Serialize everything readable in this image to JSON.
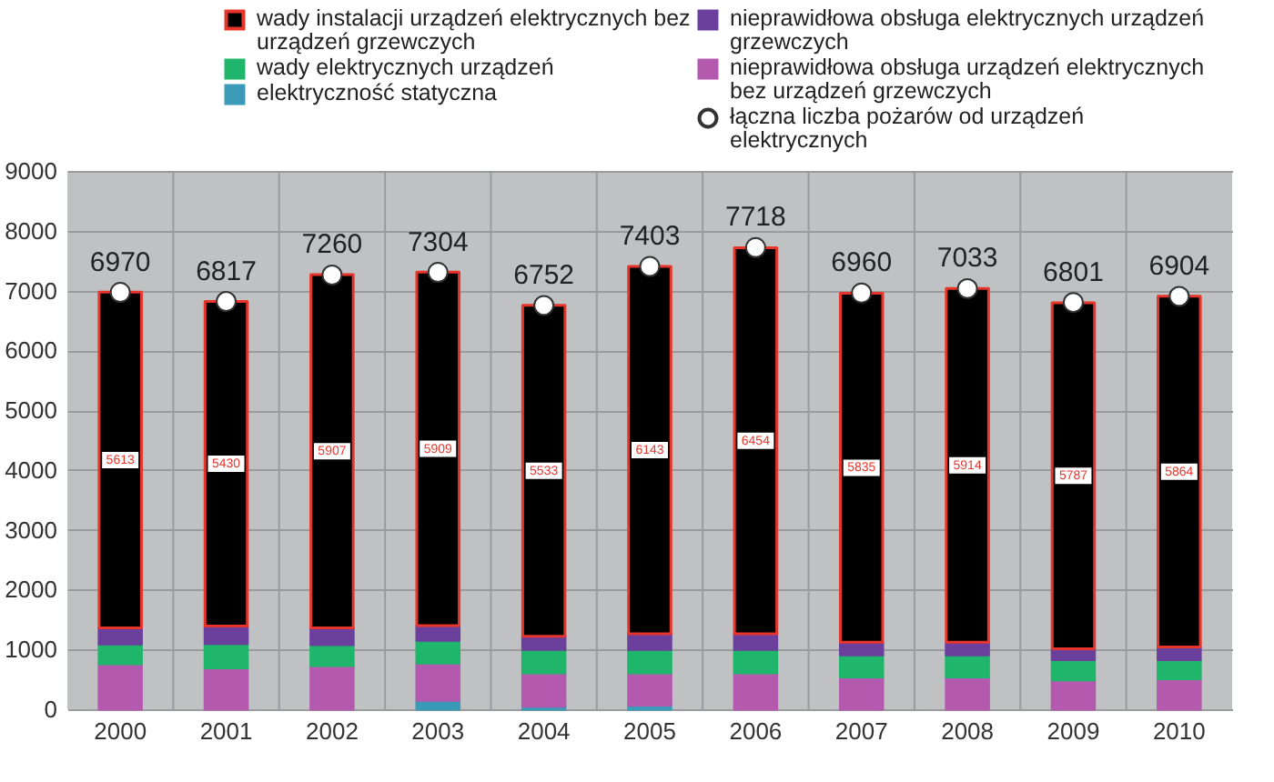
{
  "chart_data": {
    "type": "bar",
    "stacked": true,
    "legend": "top",
    "grid": true,
    "marker": "circle",
    "ylim": [
      0,
      9000
    ],
    "yticks": [
      0,
      1000,
      2000,
      3000,
      4000,
      5000,
      6000,
      7000,
      8000,
      9000
    ],
    "categories": [
      "2000",
      "2001",
      "2002",
      "2003",
      "2004",
      "2005",
      "2006",
      "2007",
      "2008",
      "2009",
      "2010"
    ],
    "series": [
      {
        "name": "elektryczność statyczna",
        "color": "#3a9ab8",
        "values": [
          null,
          null,
          null,
          150,
          50,
          70,
          null,
          null,
          null,
          null,
          null
        ]
      },
      {
        "name": "nieprawidłowa obsługa urządzeń elektrycznych bez urządzeń grzewczych",
        "color": "#b35aae",
        "values": [
          760,
          690,
          730,
          620,
          560,
          540,
          610,
          540,
          540,
          490,
          510
        ]
      },
      {
        "name": "wady elektrycznych urządzeń",
        "color": "#1fb56b",
        "values": [
          330,
          410,
          350,
          380,
          390,
          390,
          390,
          370,
          370,
          340,
          320
        ]
      },
      {
        "name": "nieprawidłowa obsługa elektrycznych urządzeń grzewczych",
        "color": "#6b3f9c",
        "values": [
          270,
          290,
          280,
          250,
          220,
          260,
          260,
          210,
          210,
          180,
          210
        ]
      },
      {
        "name": "wady instalacji urządzeń elektrycznych bez urządzeń grzewczych",
        "color": "#000000",
        "values": [
          5613,
          5430,
          5907,
          5909,
          5533,
          6143,
          6454,
          5835,
          5914,
          5787,
          5864
        ],
        "value_labels": [
          "5613",
          "5430",
          "5907",
          "5909",
          "5533",
          "6143",
          "6454",
          "5835",
          "5914",
          "5787",
          "5864"
        ]
      },
      {
        "name": "łączna liczba pożarów od urządzeń elektrycznych",
        "type": "scatter",
        "color": "#ffffff",
        "values": [
          6970,
          6817,
          7260,
          7304,
          6752,
          7403,
          7718,
          6960,
          7033,
          6801,
          6904
        ],
        "value_labels": [
          "6970",
          "6817",
          "7260",
          "7304",
          "6752",
          "7403",
          "7718",
          "6960",
          "7033",
          "6801",
          "6904"
        ]
      }
    ]
  }
}
